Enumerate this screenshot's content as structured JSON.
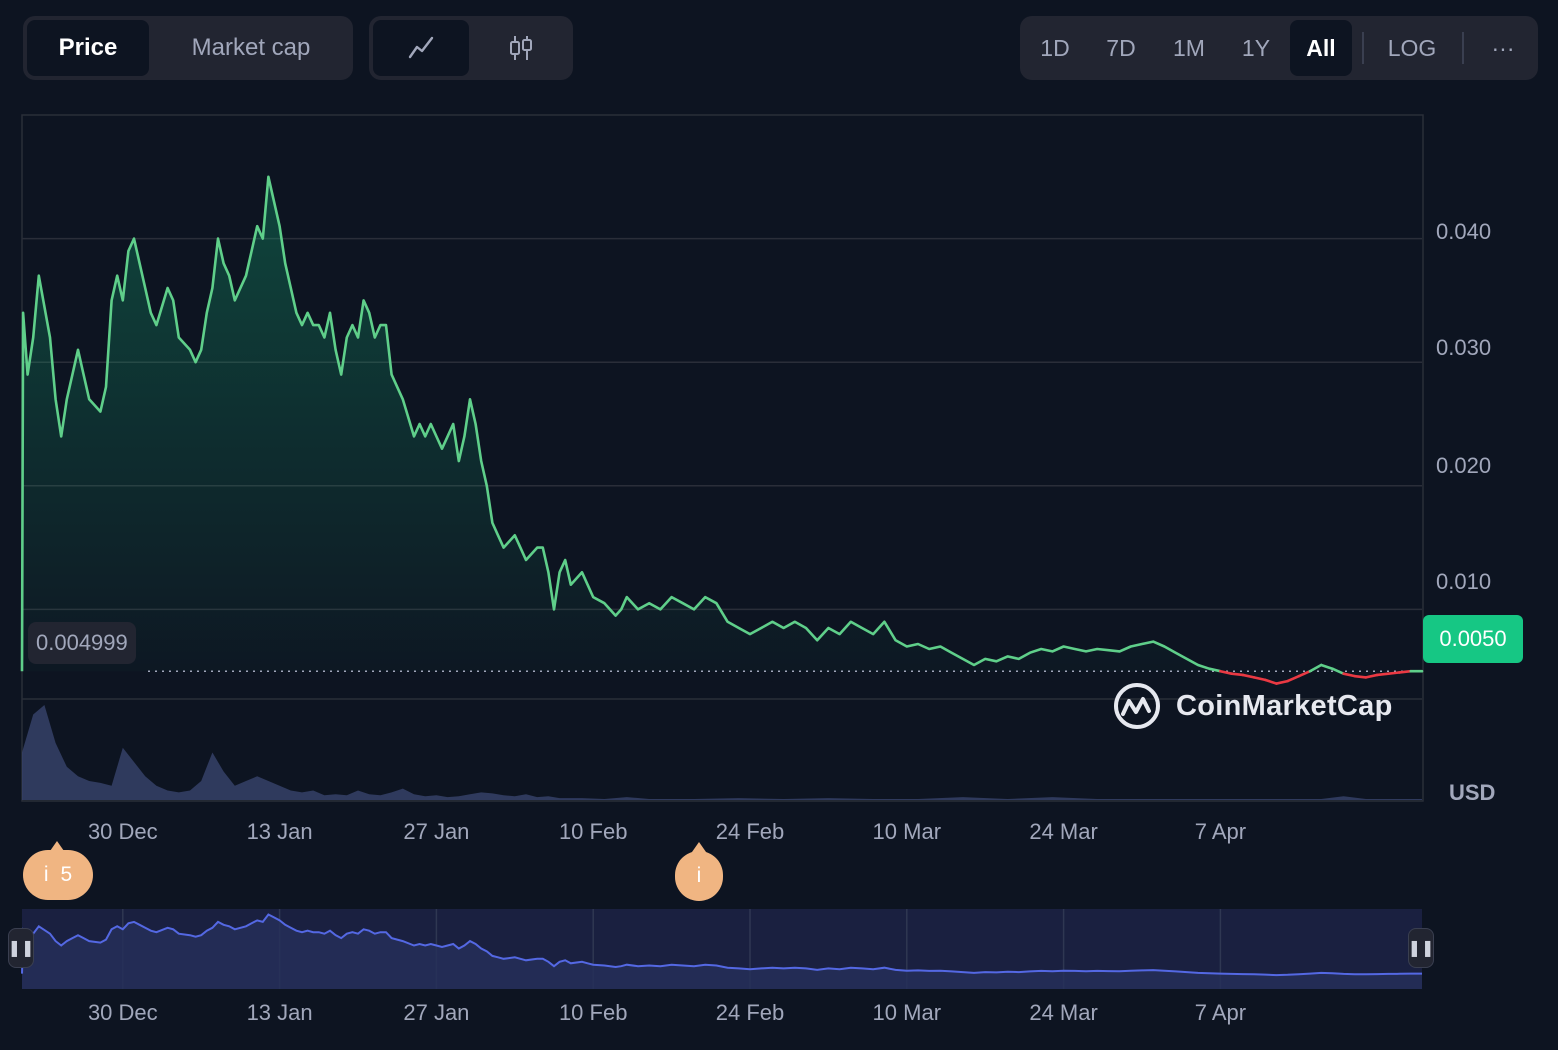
{
  "toolbar": {
    "metric_tabs": [
      {
        "label": "Price",
        "active": true
      },
      {
        "label": "Market cap",
        "active": false
      }
    ],
    "chart_type_buttons": [
      {
        "icon": "line-chart-icon",
        "active": true
      },
      {
        "icon": "candlestick-icon",
        "active": false
      }
    ],
    "ranges": [
      {
        "label": "1D",
        "active": false
      },
      {
        "label": "7D",
        "active": false
      },
      {
        "label": "1M",
        "active": false
      },
      {
        "label": "1Y",
        "active": false
      },
      {
        "label": "All",
        "active": true
      }
    ],
    "log_label": "LOG",
    "more_label": "···"
  },
  "current_price_label": "0.004999",
  "current_price_badge": "0.0050",
  "currency_label": "USD",
  "brand": "CoinMarketCap",
  "events": [
    {
      "label": "i",
      "count": "5"
    },
    {
      "label": "i",
      "count": ""
    }
  ],
  "colors": {
    "background": "#0d1421",
    "up": "#16c784",
    "line_up": "#5fcf8a",
    "down": "#ea3943",
    "volume": "#3b4772",
    "navigator_line": "#5468e3"
  },
  "chart_data": {
    "type": "line",
    "title": "",
    "xlabel": "",
    "ylabel": "USD",
    "y_ticks": [
      "0.010",
      "0.020",
      "0.030",
      "0.040"
    ],
    "ylim": [
      -0.0055,
      0.05
    ],
    "x_ticks": [
      "30 Dec",
      "13 Jan",
      "27 Jan",
      "10 Feb",
      "24 Feb",
      "10 Mar",
      "24 Mar",
      "7 Apr"
    ],
    "x_tick_days": [
      9,
      23,
      37,
      51,
      65,
      79,
      93,
      107
    ],
    "x_range_days": [
      0,
      125
    ],
    "reference_price": 0.004999,
    "series": [
      {
        "values_by_day": [
          [
            0,
            0.005
          ],
          [
            0.1,
            0.034
          ],
          [
            0.5,
            0.029
          ],
          [
            1,
            0.032
          ],
          [
            1.5,
            0.037
          ],
          [
            2.5,
            0.032
          ],
          [
            3,
            0.027
          ],
          [
            3.5,
            0.024
          ],
          [
            4,
            0.027
          ],
          [
            4.5,
            0.029
          ],
          [
            5,
            0.031
          ],
          [
            5.5,
            0.029
          ],
          [
            6,
            0.027
          ],
          [
            7,
            0.026
          ],
          [
            7.5,
            0.028
          ],
          [
            8,
            0.035
          ],
          [
            8.5,
            0.037
          ],
          [
            9,
            0.035
          ],
          [
            9.5,
            0.039
          ],
          [
            10,
            0.04
          ],
          [
            10.5,
            0.038
          ],
          [
            11,
            0.036
          ],
          [
            11.5,
            0.034
          ],
          [
            12,
            0.033
          ],
          [
            13,
            0.036
          ],
          [
            13.5,
            0.035
          ],
          [
            14,
            0.032
          ],
          [
            15,
            0.031
          ],
          [
            15.5,
            0.03
          ],
          [
            16,
            0.031
          ],
          [
            16.5,
            0.034
          ],
          [
            17,
            0.036
          ],
          [
            17.5,
            0.04
          ],
          [
            18,
            0.038
          ],
          [
            18.5,
            0.037
          ],
          [
            19,
            0.035
          ],
          [
            20,
            0.037
          ],
          [
            20.5,
            0.039
          ],
          [
            21,
            0.041
          ],
          [
            21.5,
            0.04
          ],
          [
            22,
            0.045
          ],
          [
            22.5,
            0.043
          ],
          [
            23,
            0.041
          ],
          [
            23.5,
            0.038
          ],
          [
            24,
            0.036
          ],
          [
            24.5,
            0.034
          ],
          [
            25,
            0.033
          ],
          [
            25.5,
            0.034
          ],
          [
            26,
            0.033
          ],
          [
            26.5,
            0.033
          ],
          [
            27,
            0.032
          ],
          [
            27.5,
            0.034
          ],
          [
            28,
            0.031
          ],
          [
            28.5,
            0.029
          ],
          [
            29,
            0.032
          ],
          [
            29.5,
            0.033
          ],
          [
            30,
            0.032
          ],
          [
            30.5,
            0.035
          ],
          [
            31,
            0.034
          ],
          [
            31.5,
            0.032
          ],
          [
            32,
            0.033
          ],
          [
            32.5,
            0.033
          ],
          [
            33,
            0.029
          ],
          [
            33.5,
            0.028
          ],
          [
            34,
            0.027
          ],
          [
            35,
            0.024
          ],
          [
            35.5,
            0.025
          ],
          [
            36,
            0.024
          ],
          [
            36.5,
            0.025
          ],
          [
            37,
            0.024
          ],
          [
            37.5,
            0.023
          ],
          [
            38,
            0.024
          ],
          [
            38.5,
            0.025
          ],
          [
            39,
            0.022
          ],
          [
            39.5,
            0.024
          ],
          [
            40,
            0.027
          ],
          [
            40.5,
            0.025
          ],
          [
            41,
            0.022
          ],
          [
            41.5,
            0.02
          ],
          [
            42,
            0.017
          ],
          [
            42.5,
            0.016
          ],
          [
            43,
            0.015
          ],
          [
            44,
            0.016
          ],
          [
            44.5,
            0.015
          ],
          [
            45,
            0.014
          ],
          [
            46,
            0.015
          ],
          [
            46.5,
            0.015
          ],
          [
            47,
            0.013
          ],
          [
            47.5,
            0.01
          ],
          [
            48,
            0.013
          ],
          [
            48.5,
            0.014
          ],
          [
            49,
            0.012
          ],
          [
            50,
            0.013
          ],
          [
            50.5,
            0.012
          ],
          [
            51,
            0.011
          ],
          [
            52,
            0.0105
          ],
          [
            53,
            0.0095
          ],
          [
            53.5,
            0.01
          ],
          [
            54,
            0.011
          ],
          [
            55,
            0.01
          ],
          [
            56,
            0.0105
          ],
          [
            57,
            0.01
          ],
          [
            58,
            0.011
          ],
          [
            59,
            0.0105
          ],
          [
            60,
            0.01
          ],
          [
            61,
            0.011
          ],
          [
            62,
            0.0105
          ],
          [
            63,
            0.009
          ],
          [
            64,
            0.0085
          ],
          [
            65,
            0.008
          ],
          [
            66,
            0.0085
          ],
          [
            67,
            0.009
          ],
          [
            68,
            0.0085
          ],
          [
            69,
            0.009
          ],
          [
            70,
            0.0085
          ],
          [
            71,
            0.0075
          ],
          [
            72,
            0.0085
          ],
          [
            73,
            0.008
          ],
          [
            74,
            0.009
          ],
          [
            75,
            0.0085
          ],
          [
            76,
            0.008
          ],
          [
            77,
            0.009
          ],
          [
            78,
            0.0075
          ],
          [
            79,
            0.007
          ],
          [
            80,
            0.0072
          ],
          [
            81,
            0.0068
          ],
          [
            82,
            0.007
          ],
          [
            83,
            0.0065
          ],
          [
            84,
            0.006
          ],
          [
            85,
            0.0055
          ],
          [
            86,
            0.006
          ],
          [
            87,
            0.0058
          ],
          [
            88,
            0.0062
          ],
          [
            89,
            0.006
          ],
          [
            90,
            0.0065
          ],
          [
            91,
            0.0068
          ],
          [
            92,
            0.0066
          ],
          [
            93,
            0.007
          ],
          [
            94,
            0.0068
          ],
          [
            95,
            0.0066
          ],
          [
            96,
            0.0068
          ],
          [
            97,
            0.0067
          ],
          [
            98,
            0.0066
          ],
          [
            99,
            0.007
          ],
          [
            100,
            0.0072
          ],
          [
            101,
            0.0074
          ],
          [
            102,
            0.007
          ],
          [
            103,
            0.0065
          ],
          [
            104,
            0.006
          ],
          [
            105,
            0.0055
          ],
          [
            106,
            0.0052
          ],
          [
            107,
            0.005
          ]
        ],
        "color": "up"
      },
      {
        "values_by_day": [
          [
            107,
            0.005
          ],
          [
            108,
            0.0048
          ],
          [
            109,
            0.0047
          ],
          [
            110,
            0.0045
          ],
          [
            111,
            0.0043
          ],
          [
            112,
            0.004
          ],
          [
            113,
            0.0042
          ],
          [
            114,
            0.0046
          ],
          [
            115,
            0.005
          ],
          [
            116,
            0.0055
          ],
          [
            117,
            0.0052
          ],
          [
            118,
            0.0048
          ],
          [
            119,
            0.0046
          ],
          [
            120,
            0.0045
          ],
          [
            121,
            0.0047
          ],
          [
            122,
            0.0048
          ],
          [
            123,
            0.0049
          ],
          [
            124,
            0.005
          ],
          [
            125,
            0.005
          ]
        ],
        "color": "mixed"
      }
    ],
    "volume_by_day": [
      [
        0,
        0.5
      ],
      [
        1,
        0.9
      ],
      [
        2,
        1.0
      ],
      [
        3,
        0.6
      ],
      [
        4,
        0.35
      ],
      [
        5,
        0.25
      ],
      [
        6,
        0.2
      ],
      [
        7,
        0.18
      ],
      [
        8,
        0.15
      ],
      [
        9,
        0.55
      ],
      [
        10,
        0.4
      ],
      [
        11,
        0.25
      ],
      [
        12,
        0.15
      ],
      [
        13,
        0.1
      ],
      [
        14,
        0.08
      ],
      [
        15,
        0.1
      ],
      [
        16,
        0.2
      ],
      [
        17,
        0.5
      ],
      [
        18,
        0.3
      ],
      [
        19,
        0.15
      ],
      [
        20,
        0.2
      ],
      [
        21,
        0.25
      ],
      [
        22,
        0.2
      ],
      [
        23,
        0.15
      ],
      [
        24,
        0.1
      ],
      [
        25,
        0.08
      ],
      [
        26,
        0.1
      ],
      [
        27,
        0.05
      ],
      [
        28,
        0.06
      ],
      [
        29,
        0.05
      ],
      [
        30,
        0.1
      ],
      [
        31,
        0.06
      ],
      [
        32,
        0.05
      ],
      [
        33,
        0.08
      ],
      [
        34,
        0.12
      ],
      [
        35,
        0.06
      ],
      [
        36,
        0.04
      ],
      [
        37,
        0.05
      ],
      [
        38,
        0.03
      ],
      [
        39,
        0.04
      ],
      [
        40,
        0.06
      ],
      [
        41,
        0.08
      ],
      [
        42,
        0.07
      ],
      [
        43,
        0.05
      ],
      [
        44,
        0.04
      ],
      [
        45,
        0.06
      ],
      [
        46,
        0.03
      ],
      [
        47,
        0.04
      ],
      [
        48,
        0.02
      ],
      [
        50,
        0.02
      ],
      [
        52,
        0.01
      ],
      [
        54,
        0.03
      ],
      [
        56,
        0.01
      ],
      [
        60,
        0.01
      ],
      [
        64,
        0.02
      ],
      [
        68,
        0.01
      ],
      [
        72,
        0.02
      ],
      [
        76,
        0.01
      ],
      [
        80,
        0.01
      ],
      [
        84,
        0.03
      ],
      [
        88,
        0.01
      ],
      [
        92,
        0.03
      ],
      [
        96,
        0.01
      ],
      [
        100,
        0.01
      ],
      [
        104,
        0.01
      ],
      [
        108,
        0.01
      ],
      [
        112,
        0.01
      ],
      [
        116,
        0.01
      ],
      [
        118,
        0.04
      ],
      [
        120,
        0.01
      ],
      [
        125,
        0.01
      ]
    ]
  }
}
